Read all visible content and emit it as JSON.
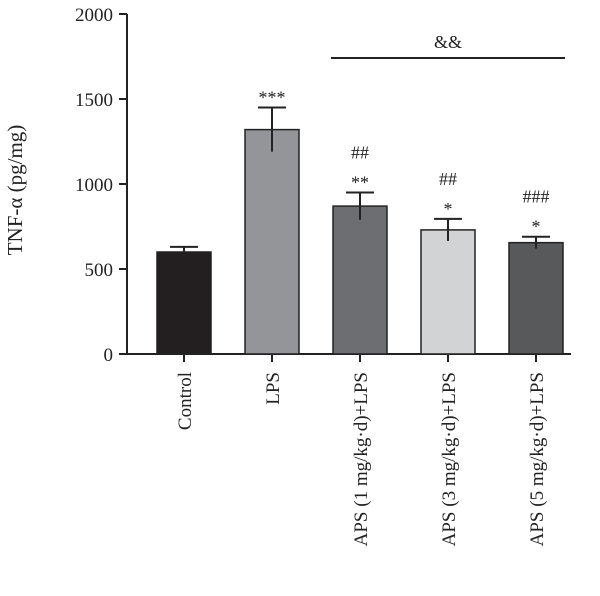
{
  "chart_data": {
    "type": "bar",
    "title": "",
    "xlabel": "",
    "ylabel": "TNF-α (pg/mg)",
    "ylim": [
      0,
      2000
    ],
    "yticks": [
      0,
      500,
      1000,
      1500,
      2000
    ],
    "categories": [
      "Control",
      "LPS",
      "APS (1 mg/kg·d)+LPS",
      "APS (3 mg/kg·d)+LPS",
      "APS (5 mg/kg·d)+LPS"
    ],
    "values": [
      600,
      1320,
      870,
      730,
      655
    ],
    "errors": [
      30,
      130,
      80,
      65,
      35
    ],
    "colors": [
      "#231f20",
      "#939598",
      "#6d6e71",
      "#d1d3d4",
      "#58595b"
    ],
    "significance": [
      {
        "lines": []
      },
      {
        "lines": [
          "***"
        ]
      },
      {
        "lines": [
          "##",
          "**"
        ]
      },
      {
        "lines": [
          "##",
          "*"
        ]
      },
      {
        "lines": [
          "###",
          "*"
        ]
      }
    ],
    "bracket": {
      "label": "&&",
      "from_category": 2,
      "to_category": 4
    },
    "grid": false,
    "legend": "none"
  }
}
